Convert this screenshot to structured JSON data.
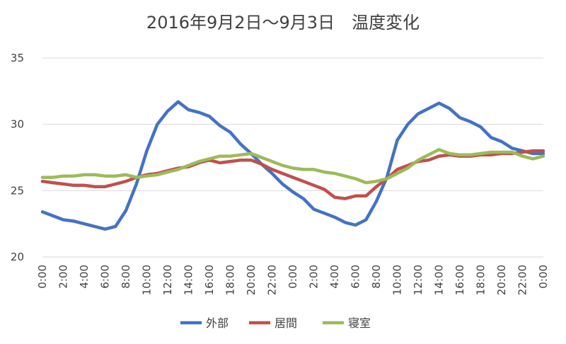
{
  "chart_data": {
    "type": "line",
    "title": "2016年9月2日～9月3日　温度変化",
    "xlabel": "",
    "ylabel": "",
    "ylim": [
      20,
      35
    ],
    "yticks": [
      "20",
      "25",
      "30",
      "35"
    ],
    "grid": true,
    "legend_position": "bottom",
    "x_tick_labels": [
      "0:00",
      "2:00",
      "4:00",
      "6:00",
      "8:00",
      "10:00",
      "12:00",
      "14:00",
      "16:00",
      "18:00",
      "20:00",
      "22:00",
      "0:00",
      "2:00",
      "4:00",
      "6:00",
      "8:00",
      "10:00",
      "12:00",
      "14:00",
      "16:00",
      "18:00",
      "20:00",
      "22:00",
      "0:00"
    ],
    "x": [
      "0:00",
      "1:00",
      "2:00",
      "3:00",
      "4:00",
      "5:00",
      "6:00",
      "7:00",
      "8:00",
      "9:00",
      "10:00",
      "11:00",
      "12:00",
      "13:00",
      "14:00",
      "15:00",
      "16:00",
      "17:00",
      "18:00",
      "19:00",
      "20:00",
      "21:00",
      "22:00",
      "23:00",
      "0:00",
      "1:00",
      "2:00",
      "3:00",
      "4:00",
      "5:00",
      "6:00",
      "7:00",
      "8:00",
      "9:00",
      "10:00",
      "11:00",
      "12:00",
      "13:00",
      "14:00",
      "15:00",
      "16:00",
      "17:00",
      "18:00",
      "19:00",
      "20:00",
      "21:00",
      "22:00",
      "23:00",
      "0:00"
    ],
    "series": [
      {
        "name": "外部",
        "color": "#4472c4",
        "values": [
          23.4,
          23.1,
          22.8,
          22.7,
          22.5,
          22.3,
          22.1,
          22.3,
          23.5,
          25.5,
          28.0,
          30.0,
          31.0,
          31.7,
          31.1,
          30.9,
          30.6,
          29.9,
          29.4,
          28.5,
          27.8,
          27.0,
          26.3,
          25.5,
          24.9,
          24.4,
          23.6,
          23.3,
          23.0,
          22.6,
          22.4,
          22.8,
          24.2,
          26.0,
          28.8,
          30.0,
          30.8,
          31.2,
          31.6,
          31.2,
          30.5,
          30.2,
          29.8,
          29.0,
          28.7,
          28.2,
          28.0,
          27.8,
          27.8
        ]
      },
      {
        "name": "居間",
        "color": "#c0504d",
        "values": [
          25.7,
          25.6,
          25.5,
          25.4,
          25.4,
          25.3,
          25.3,
          25.5,
          25.7,
          26.0,
          26.2,
          26.3,
          26.5,
          26.7,
          26.8,
          27.1,
          27.3,
          27.1,
          27.2,
          27.3,
          27.3,
          27.0,
          26.6,
          26.3,
          26.0,
          25.7,
          25.4,
          25.1,
          24.5,
          24.4,
          24.6,
          24.6,
          25.3,
          25.9,
          26.6,
          26.9,
          27.2,
          27.3,
          27.6,
          27.7,
          27.6,
          27.6,
          27.7,
          27.7,
          27.8,
          27.8,
          27.9,
          28.0,
          28.0
        ]
      },
      {
        "name": "寝室",
        "color": "#9bbb59",
        "values": [
          26.0,
          26.0,
          26.1,
          26.1,
          26.2,
          26.2,
          26.1,
          26.1,
          26.2,
          26.0,
          26.1,
          26.2,
          26.4,
          26.6,
          26.9,
          27.2,
          27.4,
          27.6,
          27.6,
          27.7,
          27.8,
          27.5,
          27.2,
          26.9,
          26.7,
          26.6,
          26.6,
          26.4,
          26.3,
          26.1,
          25.9,
          25.6,
          25.7,
          25.9,
          26.3,
          26.7,
          27.3,
          27.7,
          28.1,
          27.8,
          27.7,
          27.7,
          27.8,
          27.9,
          27.9,
          27.9,
          27.6,
          27.4,
          27.6
        ]
      }
    ]
  }
}
